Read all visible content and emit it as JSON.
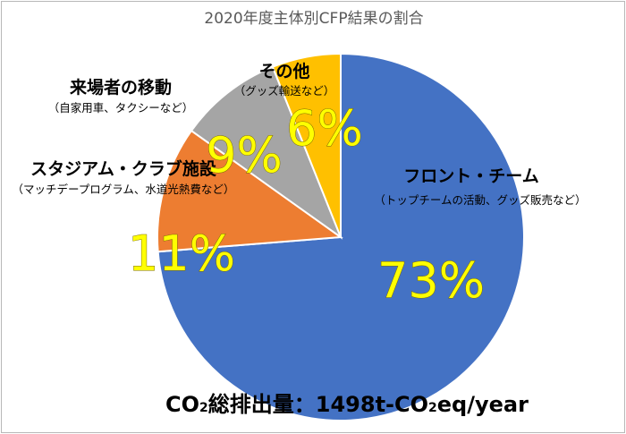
{
  "chart_data": {
    "type": "pie",
    "title": "2020年度主体別CFP結果の割合",
    "slices": [
      {
        "label": "フロント・チーム",
        "sublabel": "（トップチームの活動、グッズ販売など）",
        "value": 73,
        "value_label": "73%",
        "color": "#4472c4"
      },
      {
        "label": "スタジアム・クラブ施設",
        "sublabel": "（マッチデープログラム、水道光熱費など）",
        "value": 11,
        "value_label": "11%",
        "color": "#ed7d31"
      },
      {
        "label": "来場者の移動",
        "sublabel": "（自家用車、タクシーなど）",
        "value": 9,
        "value_label": "9%",
        "color": "#a5a5a5"
      },
      {
        "label": "その他",
        "sublabel": "（グッズ輸送など）",
        "value": 6,
        "value_label": "6%",
        "color": "#ffc000"
      }
    ],
    "start_angle_deg": 0,
    "direction": "clockwise",
    "value_label_color": "#ffff00"
  },
  "footer": {
    "prefix": "CO",
    "sub1": "2",
    "middle": "総排出量：1498t-CO",
    "sub2": "2",
    "suffix": "eq/year"
  }
}
